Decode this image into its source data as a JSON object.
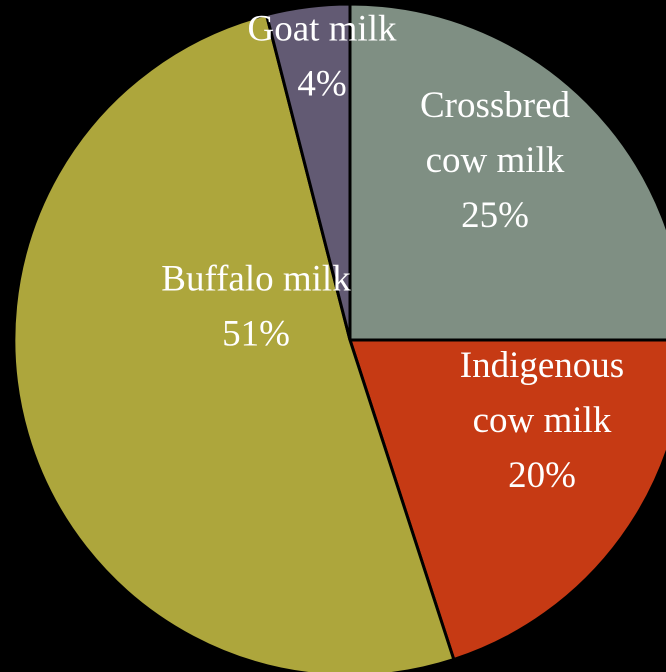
{
  "chart_data": {
    "type": "pie",
    "title": "",
    "slices": [
      {
        "name": "Crossbred cow milk",
        "value": 25,
        "label_lines": [
          "Crossbred",
          "cow milk",
          "25%"
        ],
        "color": "#7f8f83"
      },
      {
        "name": "Indigenous cow milk",
        "value": 20,
        "label_lines": [
          "Indigenous",
          "cow milk",
          "20%"
        ],
        "color": "#c63a14"
      },
      {
        "name": "Buffalo milk",
        "value": 51,
        "label_lines": [
          "Buffalo milk",
          "51%"
        ],
        "color": "#ada63c"
      },
      {
        "name": "Goat milk",
        "value": 4,
        "label_lines": [
          "Goat milk",
          "4%"
        ],
        "color": "#625a73"
      }
    ]
  }
}
